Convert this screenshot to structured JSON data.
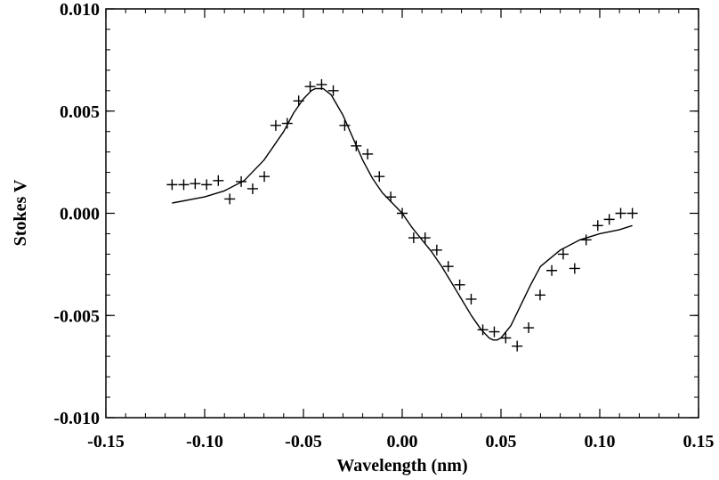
{
  "chart_data": {
    "type": "scatter",
    "title": "",
    "xlabel": "Wavelength (nm)",
    "ylabel": "Stokes V",
    "xlim": [
      -0.15,
      0.15
    ],
    "ylim": [
      -0.01,
      0.01
    ],
    "x_ticks": [
      -0.15,
      -0.1,
      -0.05,
      0.0,
      0.05,
      0.1,
      0.15
    ],
    "x_tick_labels": [
      "-0.15",
      "-0.10",
      "-0.05",
      "0.00",
      "0.05",
      "0.10",
      "0.15"
    ],
    "y_ticks": [
      -0.01,
      -0.005,
      0.0,
      0.005,
      0.01
    ],
    "y_tick_labels": [
      "-0.010",
      "-0.005",
      "0.000",
      "0.005",
      "0.010"
    ],
    "grid": false,
    "series": [
      {
        "style": "plus-markers",
        "x": [
          -0.1165,
          -0.1106,
          -0.1048,
          -0.099,
          -0.0931,
          -0.0873,
          -0.0815,
          -0.0757,
          -0.0698,
          -0.064,
          -0.0582,
          -0.0524,
          -0.0466,
          -0.0408,
          -0.0349,
          -0.0291,
          -0.0233,
          -0.0175,
          -0.0116,
          -0.0058,
          0.0,
          0.0058,
          0.0116,
          0.0175,
          0.0233,
          0.0291,
          0.0349,
          0.0408,
          0.0466,
          0.0524,
          0.0582,
          0.064,
          0.0698,
          0.0757,
          0.0815,
          0.0873,
          0.0931,
          0.099,
          0.1048,
          0.1106,
          0.1165
        ],
        "y": [
          0.0014,
          0.0014,
          0.00145,
          0.0014,
          0.0016,
          0.0007,
          0.00155,
          0.0012,
          0.0018,
          0.0043,
          0.0044,
          0.0055,
          0.0062,
          0.0063,
          0.006,
          0.0043,
          0.0033,
          0.0029,
          0.0018,
          0.0008,
          0.0,
          -0.0012,
          -0.0012,
          -0.0018,
          -0.0026,
          -0.0035,
          -0.0042,
          -0.0057,
          -0.0058,
          -0.0061,
          -0.0065,
          -0.0056,
          -0.004,
          -0.0028,
          -0.002,
          -0.0027,
          -0.0013,
          -0.0006,
          -0.0003,
          0.0,
          0.0
        ]
      },
      {
        "style": "line",
        "x": [
          -0.1165,
          -0.1,
          -0.09,
          -0.08,
          -0.07,
          -0.065,
          -0.06,
          -0.055,
          -0.05,
          -0.046,
          -0.044,
          -0.04,
          -0.036,
          -0.03,
          -0.025,
          -0.02,
          -0.015,
          -0.01,
          -0.005,
          0.0,
          0.005,
          0.01,
          0.015,
          0.02,
          0.025,
          0.03,
          0.035,
          0.04,
          0.044,
          0.046,
          0.048,
          0.05,
          0.055,
          0.06,
          0.065,
          0.07,
          0.08,
          0.09,
          0.1,
          0.11,
          0.1165
        ],
        "y": [
          0.0005,
          0.0008,
          0.0011,
          0.0016,
          0.0026,
          0.0033,
          0.004,
          0.0049,
          0.0056,
          0.006,
          0.0061,
          0.0061,
          0.0058,
          0.0048,
          0.0037,
          0.0026,
          0.0017,
          0.001,
          0.0005,
          0.0,
          -0.0007,
          -0.0013,
          -0.0019,
          -0.0026,
          -0.0034,
          -0.0042,
          -0.005,
          -0.0057,
          -0.0061,
          -0.0062,
          -0.0062,
          -0.0061,
          -0.0055,
          -0.0045,
          -0.0035,
          -0.0026,
          -0.0018,
          -0.0013,
          -0.001,
          -0.0008,
          -0.0006
        ]
      }
    ]
  }
}
